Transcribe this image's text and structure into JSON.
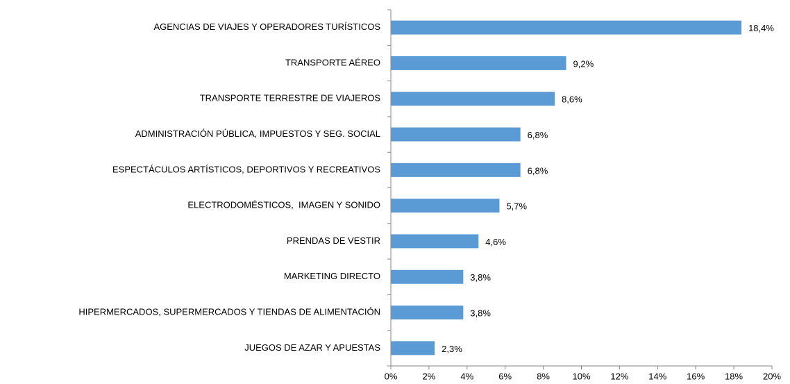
{
  "chart_data": {
    "type": "bar",
    "orientation": "horizontal",
    "categories": [
      "AGENCIAS DE VIAJES Y OPERADORES TURÍSTICOS",
      "TRANSPORTE AÉREO",
      "TRANSPORTE TERRESTRE DE VIAJEROS",
      "ADMINISTRACIÓN PÚBLICA, IMPUESTOS Y SEG. SOCIAL",
      "ESPECTÁCULOS ARTÍSTICOS, DEPORTIVOS Y RECREATIVOS",
      "ELECTRODOMÉSTICOS,  IMAGEN Y SONIDO",
      "PRENDAS DE VESTIR",
      "MARKETING DIRECTO",
      "HIPERMERCADOS, SUPERMERCADOS Y TIENDAS DE ALIMENTACIÓN",
      "JUEGOS DE AZAR Y APUESTAS"
    ],
    "values": [
      18.4,
      9.2,
      8.6,
      6.8,
      6.8,
      5.7,
      4.6,
      3.8,
      3.8,
      2.3
    ],
    "value_labels": [
      "18,4%",
      "9,2%",
      "8,6%",
      "6,8%",
      "6,8%",
      "5,7%",
      "4,6%",
      "3,8%",
      "3,8%",
      "2,3%"
    ],
    "color": "#5b9bd5",
    "xlim": [
      0,
      20
    ],
    "xticks": [
      {
        "value": 0,
        "label": "0%"
      },
      {
        "value": 2,
        "label": "2%"
      },
      {
        "value": 4,
        "label": "4%"
      },
      {
        "value": 6,
        "label": "6%"
      },
      {
        "value": 8,
        "label": "8%"
      },
      {
        "value": 10,
        "label": "10%"
      },
      {
        "value": 12,
        "label": "12%"
      },
      {
        "value": 14,
        "label": "14%"
      },
      {
        "value": 16,
        "label": "16%"
      },
      {
        "value": 18,
        "label": "18%"
      },
      {
        "value": 20,
        "label": "20%"
      }
    ],
    "grid": false
  }
}
